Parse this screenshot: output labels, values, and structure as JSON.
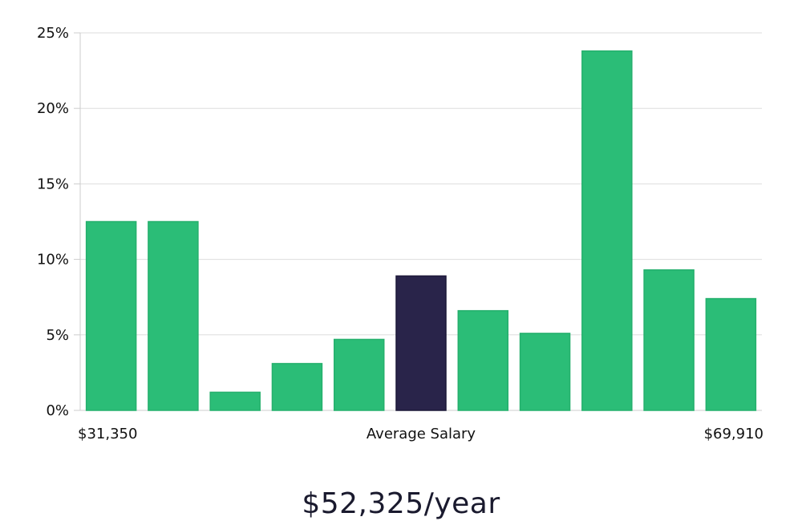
{
  "chart_data": {
    "type": "bar",
    "categories": [
      "1",
      "2",
      "3",
      "4",
      "5",
      "6",
      "7",
      "8",
      "9",
      "10",
      "11"
    ],
    "values": [
      12.5,
      12.5,
      1.2,
      3.1,
      4.7,
      8.9,
      6.6,
      5.1,
      23.8,
      9.3,
      7.4
    ],
    "highlight_index": 5,
    "ylim": [
      0,
      25
    ],
    "yticks": [
      0,
      5,
      10,
      15,
      20,
      25
    ],
    "ytick_labels": [
      "0%",
      "5%",
      "10%",
      "15%",
      "20%",
      "25%"
    ],
    "x_labels": {
      "left": "$31,350",
      "center": "Average Salary",
      "right": "$69,910"
    },
    "grid": true,
    "colors": {
      "bar": "#2bbd77",
      "highlight": "#29244a",
      "grid": "#dddddd",
      "axis": "#cccccc"
    }
  },
  "salary_text": "$52,325/year"
}
